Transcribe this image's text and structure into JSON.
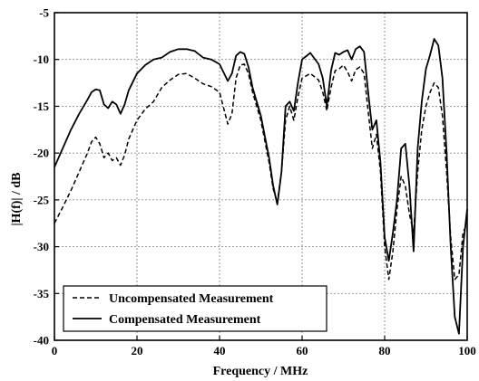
{
  "chart_data": {
    "type": "line",
    "title": "",
    "xlabel": "Frequency / MHz",
    "ylabel": "|H(f)| / dB",
    "xlim": [
      0,
      100
    ],
    "ylim": [
      -40,
      -5
    ],
    "x_ticks": [
      "0",
      "20",
      "40",
      "60",
      "80",
      "100"
    ],
    "y_ticks": [
      "-5",
      "-10",
      "-15",
      "-20",
      "-25",
      "-30",
      "-35",
      "-40"
    ],
    "grid": true,
    "legend_position": "bottom-left",
    "series": [
      {
        "name": "Uncompensated Measurement",
        "style": "dashed",
        "color": "#000000",
        "x": [
          0,
          2,
          4,
          6,
          8,
          9,
          10,
          11,
          12,
          13,
          14,
          15,
          16,
          17,
          18,
          20,
          22,
          24,
          26,
          28,
          30,
          32,
          34,
          36,
          38,
          40,
          42,
          43,
          44,
          45,
          46,
          47,
          48,
          50,
          52,
          53,
          54,
          55,
          56,
          57,
          58,
          59,
          60,
          62,
          64,
          65,
          66,
          67,
          68,
          69,
          70,
          71,
          72,
          73,
          74,
          75,
          76,
          77,
          78,
          79,
          80,
          81,
          82,
          83,
          84,
          85,
          86,
          87,
          88,
          89,
          90,
          91,
          92,
          93,
          94,
          95,
          96,
          97,
          98,
          99,
          100
        ],
        "y": [
          -27.5,
          -25.8,
          -24.0,
          -22.0,
          -20.0,
          -18.8,
          -18.3,
          -19.0,
          -20.5,
          -20.0,
          -20.8,
          -20.5,
          -21.3,
          -20.2,
          -18.5,
          -16.5,
          -15.3,
          -14.5,
          -13.0,
          -12.2,
          -11.6,
          -11.5,
          -12.0,
          -12.6,
          -12.9,
          -13.5,
          -16.9,
          -15.8,
          -12.0,
          -10.6,
          -10.5,
          -11.5,
          -13.5,
          -16.5,
          -21.0,
          -23.8,
          -25.3,
          -22.0,
          -16.5,
          -15.0,
          -16.5,
          -14.0,
          -12.0,
          -11.5,
          -12.2,
          -13.5,
          -15.5,
          -13.0,
          -11.2,
          -11.0,
          -10.6,
          -11.3,
          -12.3,
          -11.1,
          -10.8,
          -11.5,
          -15.5,
          -19.5,
          -18.0,
          -22.0,
          -30.0,
          -33.5,
          -30.5,
          -26.0,
          -22.5,
          -23.5,
          -26.5,
          -28.5,
          -22.0,
          -17.5,
          -15.0,
          -13.5,
          -12.5,
          -13.0,
          -16.0,
          -22.0,
          -29.0,
          -33.5,
          -33.0,
          -28.5,
          -27.5
        ]
      },
      {
        "name": "Compensated Measurement",
        "style": "solid",
        "color": "#000000",
        "x": [
          0,
          2,
          4,
          6,
          8,
          9,
          10,
          11,
          12,
          13,
          14,
          15,
          16,
          17,
          18,
          20,
          22,
          24,
          26,
          28,
          30,
          32,
          34,
          36,
          38,
          40,
          42,
          43,
          44,
          45,
          46,
          47,
          48,
          50,
          52,
          53,
          54,
          55,
          56,
          57,
          58,
          59,
          60,
          62,
          64,
          65,
          66,
          67,
          68,
          69,
          70,
          71,
          72,
          73,
          74,
          75,
          76,
          77,
          78,
          79,
          80,
          81,
          82,
          83,
          84,
          85,
          86,
          87,
          88,
          89,
          90,
          91,
          92,
          93,
          94,
          95,
          96,
          97,
          98,
          99,
          100
        ],
        "y": [
          -21.5,
          -19.5,
          -17.5,
          -15.8,
          -14.3,
          -13.5,
          -13.2,
          -13.3,
          -14.8,
          -15.2,
          -14.5,
          -14.8,
          -15.8,
          -14.8,
          -13.3,
          -11.5,
          -10.6,
          -10.0,
          -9.8,
          -9.2,
          -8.9,
          -8.9,
          -9.1,
          -9.8,
          -10.0,
          -10.5,
          -12.3,
          -11.5,
          -9.6,
          -9.2,
          -9.4,
          -10.8,
          -13.0,
          -16.0,
          -20.5,
          -23.5,
          -25.5,
          -22.0,
          -15.0,
          -14.5,
          -15.5,
          -12.5,
          -10.0,
          -9.3,
          -10.5,
          -12.0,
          -15.0,
          -11.2,
          -9.3,
          -9.5,
          -9.2,
          -9.0,
          -10.0,
          -8.9,
          -8.6,
          -9.2,
          -13.5,
          -17.5,
          -16.5,
          -21.0,
          -29.0,
          -31.5,
          -28.5,
          -25.0,
          -19.5,
          -19.0,
          -23.5,
          -30.5,
          -19.5,
          -14.5,
          -11.0,
          -9.5,
          -7.8,
          -8.5,
          -12.0,
          -20.0,
          -30.0,
          -37.5,
          -39.3,
          -30.0,
          -26.0
        ]
      }
    ]
  }
}
